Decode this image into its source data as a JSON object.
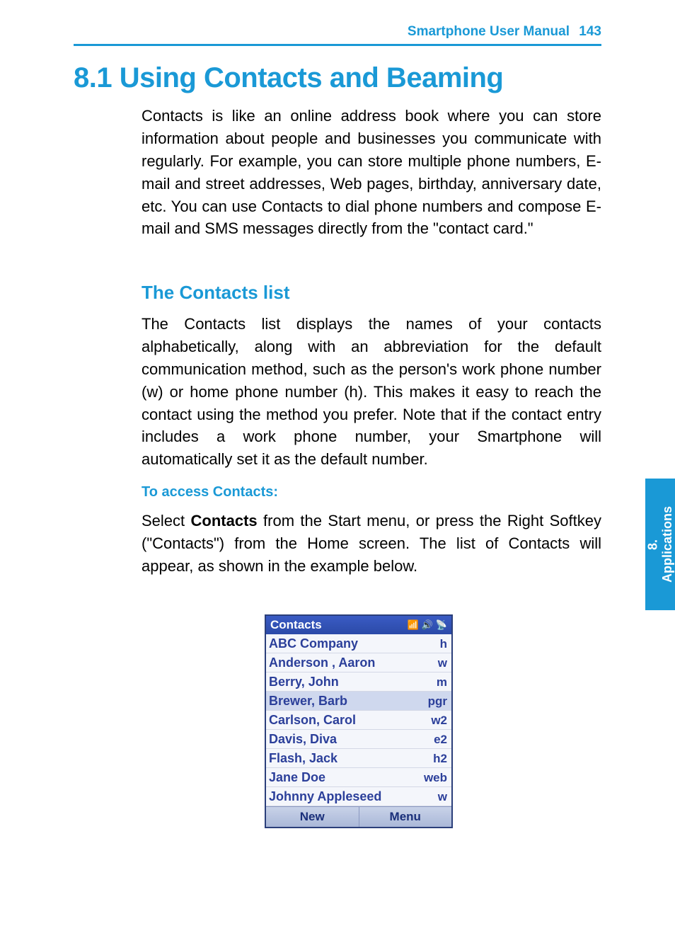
{
  "header": {
    "title": "Smartphone User Manual",
    "page": "143"
  },
  "section": {
    "number": "8.1",
    "title": "Using Contacts and Beaming"
  },
  "para1": "Contacts is like an online address book where you can store information about people and businesses you communicate with regularly.  For example, you can store multiple phone numbers, E-mail and street addresses, Web pages, birthday, anniversary date, etc.  You can use Contacts to dial phone numbers and compose E-mail and SMS messages directly from the \"contact card.\"",
  "sub1": "The Contacts list",
  "para2": "The Contacts list displays the names of your contacts alphabetically, along with an abbreviation for the default communication method, such as the person's work phone number (w) or home phone number (h).  This makes it easy to reach the contact using the method you prefer.  Note that if the contact entry includes a work phone number, your Smartphone will automatically set it as the default number.",
  "sub2": "To access Contacts:",
  "para3_pre": "Select ",
  "para3_bold": "Contacts",
  "para3_post": " from the Start menu, or press the Right Softkey (\"Contacts\") from the Home screen.  The list of Contacts will appear, as shown in the example below.",
  "sidetab": {
    "chapter": "8.",
    "label": "Applications"
  },
  "phone": {
    "title": "Contacts",
    "status_icons": [
      "📶",
      "🔊",
      "📡"
    ],
    "rows": [
      {
        "name": "ABC Company",
        "abbr": "h",
        "selected": false
      },
      {
        "name": "Anderson , Aaron",
        "abbr": "w",
        "selected": false
      },
      {
        "name": "Berry, John",
        "abbr": "m",
        "selected": false
      },
      {
        "name": "Brewer, Barb",
        "abbr": "pgr",
        "selected": true
      },
      {
        "name": "Carlson, Carol",
        "abbr": "w2",
        "selected": false
      },
      {
        "name": "Davis, Diva",
        "abbr": "e2",
        "selected": false
      },
      {
        "name": "Flash, Jack",
        "abbr": "h2",
        "selected": false
      },
      {
        "name": "Jane Doe",
        "abbr": "web",
        "selected": false
      },
      {
        "name": "Johnny Appleseed",
        "abbr": "w",
        "selected": false
      }
    ],
    "softkey_left": "New",
    "softkey_right": "Menu"
  },
  "colors": {
    "brand": "#1a99d6",
    "phone_blue": "#2b3f9a",
    "titlebar": "#3a5bc4"
  }
}
